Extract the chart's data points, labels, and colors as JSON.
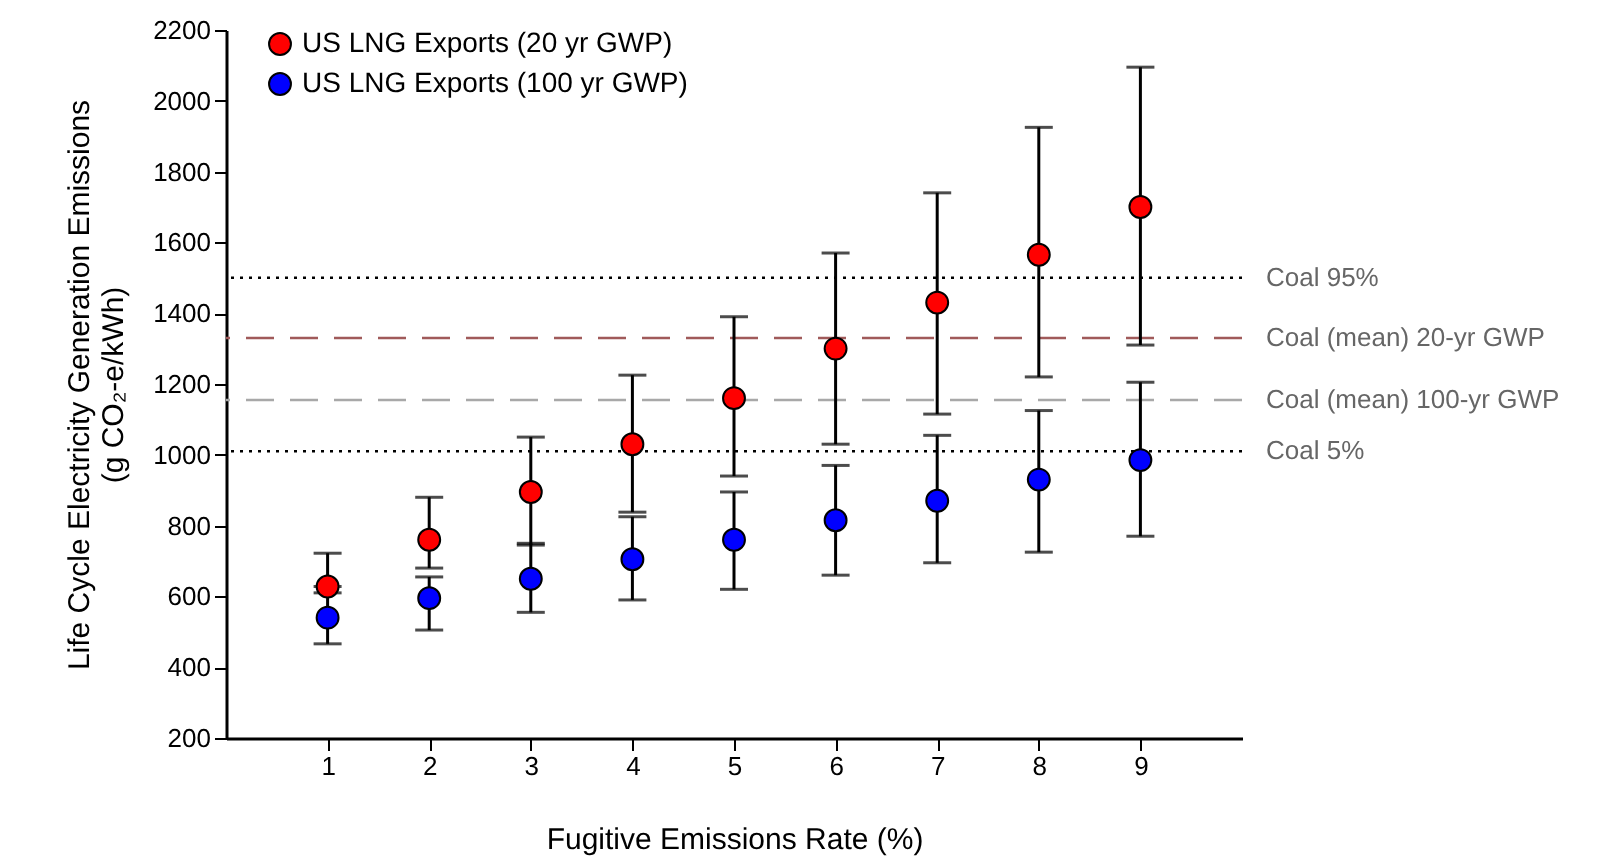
{
  "chart_data": {
    "type": "scatter",
    "xlabel": "Fugitive Emissions Rate (%)",
    "ylabel": "Life Cycle Electricity Generation Emissions\n(g CO₂-e/kWh)",
    "x": [
      1,
      2,
      3,
      4,
      5,
      6,
      7,
      8,
      9
    ],
    "xlim": [
      0,
      10
    ],
    "xticks": [
      1,
      2,
      3,
      4,
      5,
      6,
      7,
      8,
      9
    ],
    "ylim": [
      200,
      2200
    ],
    "yticks": [
      200,
      400,
      600,
      800,
      1000,
      1200,
      1400,
      1600,
      1800,
      2000,
      2200
    ],
    "series": [
      {
        "name": "US LNG Exports (20 yr GWP)",
        "color": "#ff0000",
        "values": [
          628,
          760,
          895,
          1030,
          1160,
          1300,
          1430,
          1565,
          1700
        ],
        "errors": [
          [
            628,
            722
          ],
          [
            680,
            880
          ],
          [
            745,
            1050
          ],
          [
            838,
            1225
          ],
          [
            940,
            1390
          ],
          [
            1030,
            1570
          ],
          [
            1115,
            1740
          ],
          [
            1220,
            1925
          ],
          [
            1310,
            2095
          ]
        ]
      },
      {
        "name": "US LNG Exports (100 yr GWP)",
        "color": "#0000ff",
        "values": [
          540,
          595,
          650,
          705,
          760,
          815,
          870,
          930,
          985
        ],
        "errors": [
          [
            466,
            610
          ],
          [
            505,
            655
          ],
          [
            555,
            750
          ],
          [
            590,
            825
          ],
          [
            620,
            895
          ],
          [
            660,
            970
          ],
          [
            695,
            1055
          ],
          [
            725,
            1125
          ],
          [
            770,
            1205
          ]
        ]
      }
    ],
    "ref_lines": [
      {
        "axis": "y",
        "value": 1500,
        "label": "Coal 95%",
        "color": "#000000",
        "line_style": "dotted"
      },
      {
        "axis": "y",
        "value": 1330,
        "label": "Coal (mean) 20-yr GWP",
        "color": "#a05a5a",
        "line_style": "dashed"
      },
      {
        "axis": "y",
        "value": 1155,
        "label": "Coal (mean) 100-yr GWP",
        "color": "#a8a8a8",
        "line_style": "dashed"
      },
      {
        "axis": "y",
        "value": 1010,
        "label": "Coal 5%",
        "color": "#000000",
        "line_style": "dotted"
      }
    ],
    "marker": "circle",
    "legend": "top left",
    "grid": false
  }
}
